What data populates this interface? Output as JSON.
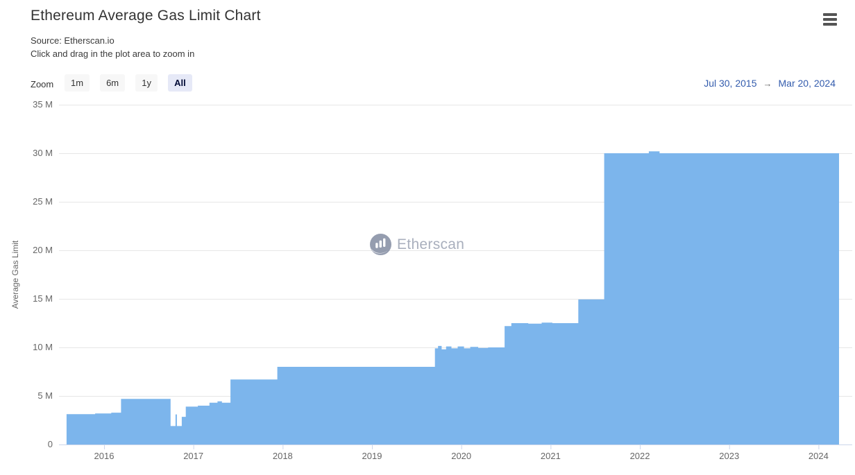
{
  "header": {
    "title": "Ethereum Average Gas Limit Chart",
    "source": "Source: Etherscan.io",
    "hint": "Click and drag in the plot area to zoom in"
  },
  "toolbar": {
    "zoom_label": "Zoom",
    "buttons": [
      {
        "label": "1m",
        "selected": false
      },
      {
        "label": "6m",
        "selected": false
      },
      {
        "label": "1y",
        "selected": false
      },
      {
        "label": "All",
        "selected": true
      }
    ],
    "range": {
      "from": "Jul 30, 2015",
      "arrow": "→",
      "to": "Mar 20, 2024"
    }
  },
  "watermark": {
    "text": "Etherscan",
    "icon": "etherscan-logo-icon"
  },
  "colors": {
    "area": "#7cb5ec",
    "grid": "#e6e6e6",
    "axis": "#ccd6eb",
    "tick_label": "#666666",
    "range_text": "#335cad",
    "button_bg": "#f7f7f7",
    "selected_button_bg": "#e6e9f7",
    "watermark_gray": "#a2a9b8"
  },
  "chart_data": {
    "type": "area",
    "title": "Ethereum Average Gas Limit Chart",
    "ylabel": "Average Gas Limit",
    "ylim": [
      0,
      35
    ],
    "xlim": [
      2015.495,
      2024.23
    ],
    "yticks": [
      {
        "value": 0,
        "label": "0"
      },
      {
        "value": 5,
        "label": "5 M"
      },
      {
        "value": 10,
        "label": "10 M"
      },
      {
        "value": 15,
        "label": "15 M"
      },
      {
        "value": 20,
        "label": "20 M"
      },
      {
        "value": 25,
        "label": "25 M"
      },
      {
        "value": 30,
        "label": "30 M"
      },
      {
        "value": 35,
        "label": "35 M"
      }
    ],
    "xticks": [
      {
        "value": 2016,
        "label": "2016"
      },
      {
        "value": 2017,
        "label": "2017"
      },
      {
        "value": 2018,
        "label": "2018"
      },
      {
        "value": 2019,
        "label": "2019"
      },
      {
        "value": 2020,
        "label": "2020"
      },
      {
        "value": 2021,
        "label": "2021"
      },
      {
        "value": 2022,
        "label": "2022"
      },
      {
        "value": 2023,
        "label": "2023"
      },
      {
        "value": 2024,
        "label": "2024"
      }
    ],
    "grid": true,
    "legend": "none",
    "series": [
      {
        "name": "Average Gas Limit",
        "color": "#7cb5ec",
        "step": "after",
        "unit": "million gas",
        "points": [
          [
            2015.58,
            3.12
          ],
          [
            2015.9,
            3.2
          ],
          [
            2016.08,
            3.28
          ],
          [
            2016.19,
            4.7
          ],
          [
            2016.745,
            1.9
          ],
          [
            2016.8,
            3.1
          ],
          [
            2016.815,
            1.9
          ],
          [
            2016.87,
            2.85
          ],
          [
            2016.915,
            3.9
          ],
          [
            2017.05,
            4.0
          ],
          [
            2017.18,
            4.3
          ],
          [
            2017.27,
            4.45
          ],
          [
            2017.32,
            4.3
          ],
          [
            2017.415,
            6.7
          ],
          [
            2017.94,
            8.0
          ],
          [
            2019.705,
            9.9
          ],
          [
            2019.74,
            10.15
          ],
          [
            2019.78,
            9.8
          ],
          [
            2019.83,
            10.1
          ],
          [
            2019.89,
            9.9
          ],
          [
            2019.96,
            10.1
          ],
          [
            2020.03,
            9.9
          ],
          [
            2020.1,
            10.05
          ],
          [
            2020.19,
            9.95
          ],
          [
            2020.3,
            10.0
          ],
          [
            2020.485,
            12.2
          ],
          [
            2020.56,
            12.5
          ],
          [
            2020.75,
            12.45
          ],
          [
            2020.9,
            12.55
          ],
          [
            2021.02,
            12.5
          ],
          [
            2021.31,
            14.95
          ],
          [
            2021.6,
            30.0
          ],
          [
            2022.1,
            30.2
          ],
          [
            2022.22,
            30.0
          ],
          [
            2024.23,
            30.0
          ]
        ]
      }
    ]
  }
}
